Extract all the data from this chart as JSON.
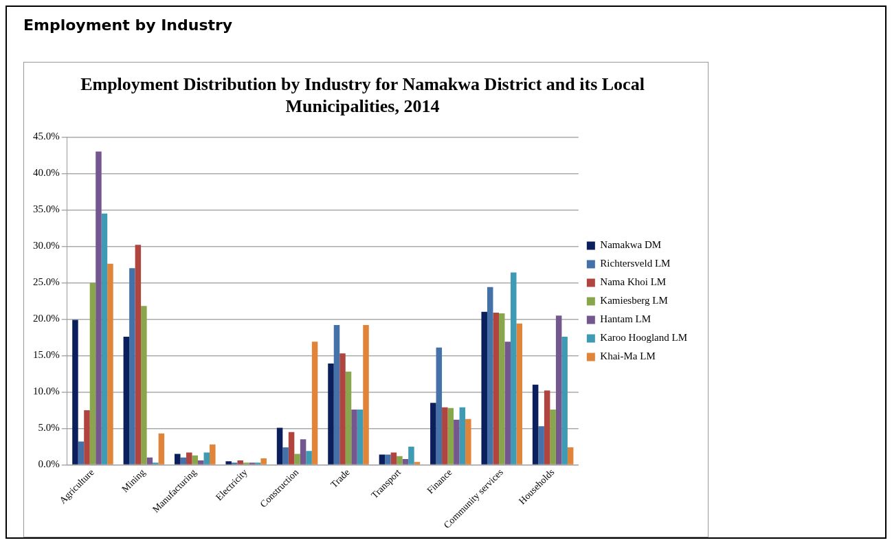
{
  "chart_data": {
    "type": "bar",
    "title": "Employment Distribution by Industry for Namakwa District and its Local Municipalities, 2014",
    "annotations": [
      "Employment by Industry"
    ],
    "categories": [
      "Agriculture",
      "Mining",
      "Manufacturing",
      "Electricity",
      "Construction",
      "Trade",
      "Transport",
      "Finance",
      "Community services",
      "Households"
    ],
    "series": [
      {
        "name": "Namakwa DM",
        "color": "#0b1f5c",
        "values": [
          19.9,
          17.6,
          1.5,
          0.5,
          5.1,
          13.9,
          1.4,
          8.5,
          21.0,
          11.0
        ]
      },
      {
        "name": "Richtersveld LM",
        "color": "#4472a8",
        "values": [
          3.2,
          27.0,
          1.0,
          0.3,
          2.4,
          19.2,
          1.4,
          16.1,
          24.4,
          5.3
        ]
      },
      {
        "name": "Nama Khoi LM",
        "color": "#b04540",
        "values": [
          7.5,
          30.2,
          1.7,
          0.6,
          4.5,
          15.3,
          1.7,
          7.9,
          20.9,
          10.2
        ]
      },
      {
        "name": "Kamiesberg LM",
        "color": "#8aa64c",
        "values": [
          25.0,
          21.8,
          1.3,
          0.3,
          1.5,
          12.8,
          1.2,
          7.8,
          20.8,
          7.6
        ]
      },
      {
        "name": "Hantam LM",
        "color": "#74578f",
        "values": [
          43.0,
          1.0,
          0.6,
          0.3,
          3.5,
          7.6,
          0.8,
          6.2,
          16.9,
          20.5
        ]
      },
      {
        "name": "Karoo Hoogland LM",
        "color": "#3f9ab3",
        "values": [
          34.5,
          0.3,
          1.7,
          0.3,
          1.9,
          7.6,
          2.5,
          7.9,
          26.4,
          17.6
        ]
      },
      {
        "name": "Khai-Ma LM",
        "color": "#e0843a",
        "values": [
          27.6,
          4.3,
          2.8,
          0.9,
          16.9,
          19.2,
          0.4,
          6.3,
          19.4,
          2.4
        ]
      }
    ],
    "ylim": [
      0,
      45
    ],
    "yticks": [
      {
        "value": 0,
        "label": "0.0%"
      },
      {
        "value": 5,
        "label": "5.0%"
      },
      {
        "value": 10,
        "label": "10.0%"
      },
      {
        "value": 15,
        "label": "15.0%"
      },
      {
        "value": 20,
        "label": "20.0%"
      },
      {
        "value": 25,
        "label": "25.0%"
      },
      {
        "value": 30,
        "label": "30.0%"
      },
      {
        "value": 35,
        "label": "35.0%"
      },
      {
        "value": 40,
        "label": "40.0%"
      },
      {
        "value": 45,
        "label": "45.0%"
      }
    ],
    "grid": "y",
    "legend": "right"
  }
}
